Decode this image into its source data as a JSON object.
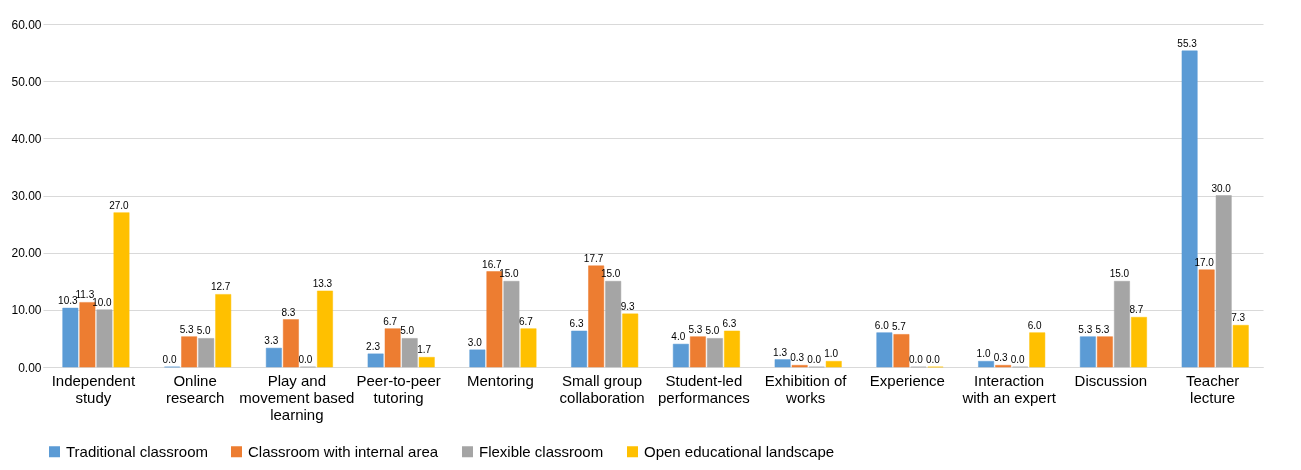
{
  "chart_data": {
    "type": "bar",
    "categories": [
      "Independent study",
      "Online research",
      "Play and movement based learning",
      "Peer-to-peer tutoring",
      "Mentoring",
      "Small group collaboration",
      "Student-led performances",
      "Exhibition of works",
      "Experience",
      "Interaction with an expert",
      "Discussion",
      "Teacher lecture"
    ],
    "series": [
      {
        "name": "Traditional classroom",
        "color": "#5b9bd5",
        "values": [
          10.3,
          0.0,
          3.3,
          2.3,
          3.0,
          6.3,
          4.0,
          1.3,
          6.0,
          1.0,
          5.3,
          55.3
        ],
        "value_labels": [
          "10.3",
          "0.0",
          "3.3",
          "2.3",
          "3.0",
          "6.3",
          "4.0",
          "1.3",
          "6.0",
          "1.0",
          "5.3",
          "55.3"
        ]
      },
      {
        "name": "Classroom with internal area",
        "color": "#ed7d31",
        "values": [
          11.3,
          5.3,
          8.3,
          6.7,
          16.7,
          17.7,
          5.3,
          0.3,
          5.7,
          0.3,
          5.3,
          17.0
        ],
        "value_labels": [
          "11.3",
          "5.3",
          "8.3",
          "6.7",
          "16.7",
          "17.7",
          "5.3",
          "0.3",
          "5.7",
          "0.3",
          "5.3",
          "17.0"
        ]
      },
      {
        "name": "Flexible classroom",
        "color": "#a5a5a5",
        "values": [
          10.0,
          5.0,
          0.0,
          5.0,
          15.0,
          15.0,
          5.0,
          0.0,
          0.0,
          0.0,
          15.0,
          30.0
        ],
        "value_labels": [
          "10.0",
          "5.0",
          "0.0",
          "5.0",
          "15.0",
          "15.0",
          "5.0",
          "0.0",
          "0.0",
          "0.0",
          "15.0",
          "30.0"
        ]
      },
      {
        "name": "Open educational landscape",
        "color": "#ffc000",
        "values": [
          27.0,
          12.7,
          13.3,
          1.7,
          6.7,
          9.3,
          6.3,
          1.0,
          0.0,
          6.0,
          8.7,
          7.3
        ],
        "value_labels": [
          "27.0",
          "12.7",
          "13.3",
          "1.7",
          "6.7",
          "9.3",
          "6.3",
          "1.0",
          "0.0",
          "6.0",
          "8.7",
          "7.3"
        ]
      }
    ],
    "ylim": [
      0,
      60
    ],
    "yticks": [
      {
        "value": 0,
        "label": "0.00"
      },
      {
        "value": 10,
        "label": "10.00"
      },
      {
        "value": 20,
        "label": "20.00"
      },
      {
        "value": 30,
        "label": "30.00"
      },
      {
        "value": 40,
        "label": "40.00"
      },
      {
        "value": 50,
        "label": "50.00"
      },
      {
        "value": 60,
        "label": "60.00"
      }
    ],
    "grid": "y",
    "legend": "bottom"
  }
}
